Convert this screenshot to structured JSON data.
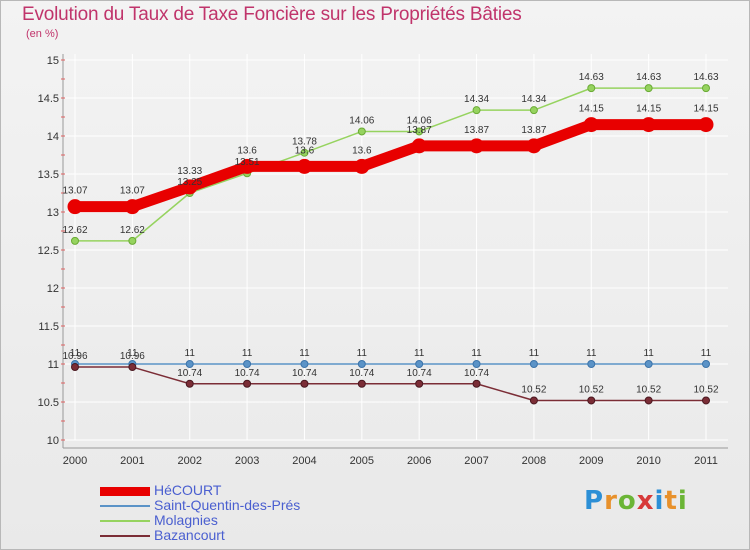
{
  "title": "Evolution du Taux de Taxe Foncière sur les Propriétés Bâties",
  "subtitle": "(en %)",
  "colors": {
    "title": "#c0346b",
    "legend_text": "#4a5fd0",
    "grid": "#ffffff"
  },
  "logo": {
    "letters": [
      "P",
      "r",
      "o",
      "x",
      "i",
      "t",
      "i"
    ],
    "colors": [
      "#2c8fd6",
      "#e8912b",
      "#6bb536",
      "#d73a3a",
      "#2c8fd6",
      "#e8912b",
      "#6bb536"
    ]
  },
  "chart_data": {
    "type": "line",
    "x": [
      "2000",
      "2001",
      "2002",
      "2003",
      "2004",
      "2005",
      "2006",
      "2007",
      "2008",
      "2009",
      "2010",
      "2011"
    ],
    "ylim": [
      10,
      15
    ],
    "yticks": [
      "10",
      "10.5",
      "11",
      "11.5",
      "12",
      "12.5",
      "13",
      "13.5",
      "14",
      "14.5",
      "15"
    ],
    "grid": true,
    "legend_position": "bottom-left",
    "series": [
      {
        "name": "HéCOURT",
        "color": "#e80000",
        "values": [
          13.07,
          13.07,
          13.33,
          13.6,
          13.6,
          13.6,
          13.87,
          13.87,
          13.87,
          14.15,
          14.15,
          14.15
        ],
        "labels": [
          "13.07",
          "13.07",
          "13.33",
          "13.6",
          "13.6",
          "13.6",
          "13.87",
          "13.87",
          "13.87",
          "14.15",
          "14.15",
          "14.15"
        ]
      },
      {
        "name": "Saint-Quentin-des-Prés",
        "color": "#5b93c7",
        "values": [
          11,
          11,
          11,
          11,
          11,
          11,
          11,
          11,
          11,
          11,
          11,
          11
        ],
        "labels": [
          "11",
          "11",
          "11",
          "11",
          "11",
          "11",
          "11",
          "11",
          "11",
          "11",
          "11",
          "11"
        ]
      },
      {
        "name": "Molagnies",
        "color": "#96d35f",
        "values": [
          12.62,
          12.62,
          13.25,
          13.51,
          13.78,
          14.06,
          14.06,
          14.34,
          14.34,
          14.63,
          14.63,
          14.63
        ],
        "labels": [
          "12.62",
          "12.62",
          "13.25",
          "13.51",
          "13.78",
          "14.06",
          "14.06",
          "14.34",
          "14.34",
          "14.63",
          "14.63",
          "14.63"
        ]
      },
      {
        "name": "Bazancourt",
        "color": "#7b2d36",
        "values": [
          10.96,
          10.96,
          10.74,
          10.74,
          10.74,
          10.74,
          10.74,
          10.74,
          10.52,
          10.52,
          10.52,
          10.52
        ],
        "labels": [
          "10.96",
          "10.96",
          "10.74",
          "10.74",
          "10.74",
          "10.74",
          "10.74",
          "10.74",
          "10.52",
          "10.52",
          "10.52",
          "10.52"
        ]
      }
    ]
  }
}
